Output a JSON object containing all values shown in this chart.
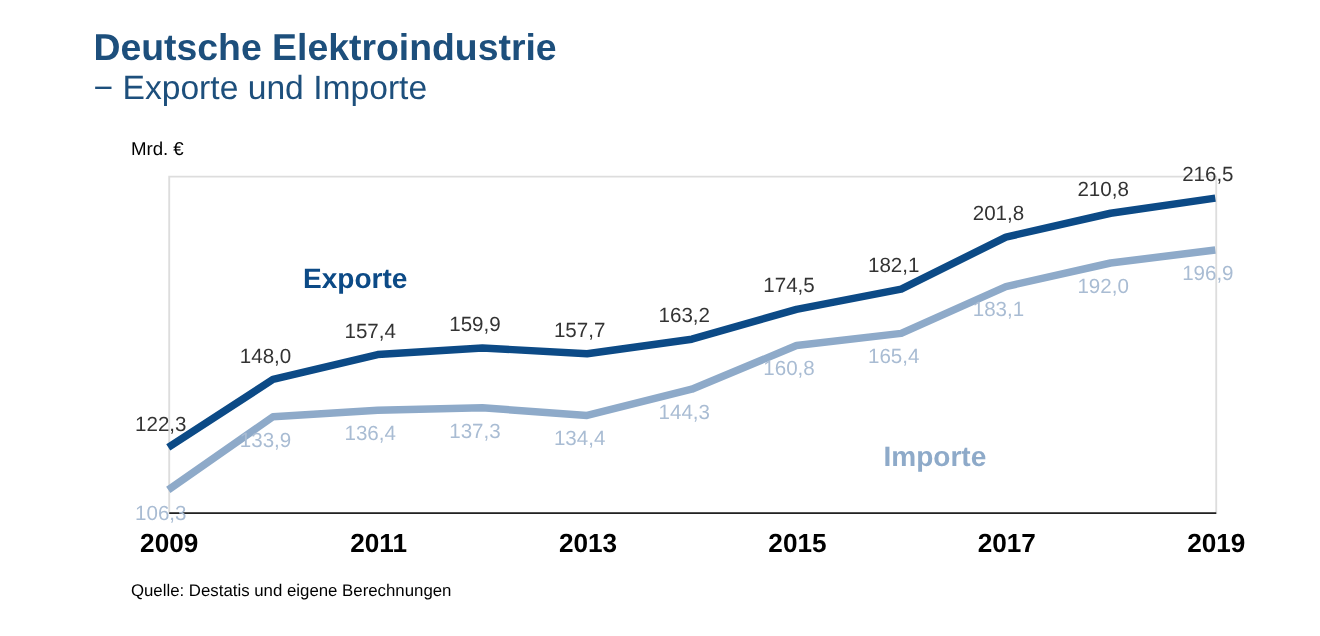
{
  "chart_data": {
    "type": "line",
    "title": "Deutsche Elektroindustrie",
    "subtitle": "− Exporte und Importe",
    "ylabel": "Mrd. €",
    "x": [
      2009,
      2010,
      2011,
      2012,
      2013,
      2014,
      2015,
      2016,
      2017,
      2018,
      2019
    ],
    "xlim": [
      2009,
      2019
    ],
    "xticks": [
      2009,
      2011,
      2013,
      2015,
      2017,
      2019
    ],
    "series": [
      {
        "name": "Exporte",
        "color": "#0c4a86",
        "values": [
          122.3,
          148.0,
          157.4,
          159.9,
          157.7,
          163.2,
          174.5,
          182.1,
          201.8,
          210.8,
          216.5
        ],
        "value_labels": [
          "122,3",
          "148,0",
          "157,4",
          "159,9",
          "157,7",
          "163,2",
          "174,5",
          "182,1",
          "201,8",
          "210,8",
          "216,5"
        ]
      },
      {
        "name": "Importe",
        "color": "#8eaac9",
        "values": [
          106.3,
          133.9,
          136.4,
          137.3,
          134.4,
          144.3,
          160.8,
          165.4,
          183.1,
          192.0,
          196.9
        ],
        "value_labels": [
          "106,3",
          "133,9",
          "136,4",
          "137,3",
          "134,4",
          "144,3",
          "160,8",
          "165,4",
          "183,1",
          "192,0",
          "196,9"
        ]
      }
    ],
    "grid": false,
    "marker": "none",
    "line_style": "solid",
    "annotations": [
      "Quelle: Destatis und eigene Berechnungen"
    ]
  }
}
